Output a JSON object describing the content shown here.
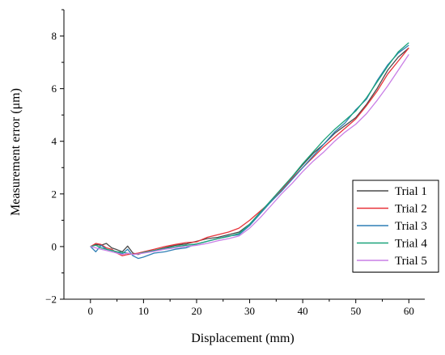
{
  "chart_data": {
    "type": "line",
    "title": "",
    "xlabel": "Displacement (mm)",
    "ylabel": "Measurement error (μm)",
    "xlim": [
      -5,
      63
    ],
    "ylim": [
      -2,
      9
    ],
    "xticks": [
      "0",
      "10",
      "20",
      "30",
      "40",
      "50",
      "60"
    ],
    "yticks": [
      "−2",
      "0",
      "2",
      "4",
      "6",
      "8"
    ],
    "xtick_values": [
      0,
      10,
      20,
      30,
      40,
      50,
      60
    ],
    "ytick_values": [
      -2,
      0,
      2,
      4,
      6,
      8
    ],
    "grid": false,
    "legend_position": "bottom-right",
    "series": [
      {
        "name": "Trial 1",
        "color": "#4a4a4a",
        "x": [
          0,
          1,
          2,
          3,
          4,
          5,
          6,
          7,
          8,
          9,
          10,
          12,
          14,
          16,
          18,
          20,
          22,
          24,
          26,
          28,
          30,
          32,
          34,
          36,
          38,
          40,
          42,
          44,
          46,
          48,
          50,
          52,
          54,
          56,
          58,
          60
        ],
        "y": [
          0.0,
          0.08,
          0.05,
          0.12,
          -0.05,
          -0.12,
          -0.2,
          0.02,
          -0.25,
          -0.3,
          -0.22,
          -0.15,
          -0.05,
          0.05,
          0.1,
          0.2,
          0.3,
          0.35,
          0.45,
          0.55,
          0.85,
          1.3,
          1.75,
          2.2,
          2.65,
          3.1,
          3.55,
          3.9,
          4.3,
          4.6,
          4.9,
          5.4,
          6.0,
          6.7,
          7.2,
          7.55
        ]
      },
      {
        "name": "Trial 2",
        "color": "#e8333a",
        "x": [
          0,
          1,
          2,
          3,
          4,
          5,
          6,
          7,
          8,
          9,
          10,
          12,
          14,
          16,
          18,
          20,
          22,
          24,
          26,
          28,
          30,
          32,
          34,
          36,
          38,
          40,
          42,
          44,
          46,
          48,
          50,
          52,
          54,
          56,
          58,
          60
        ],
        "y": [
          0.0,
          0.12,
          0.08,
          -0.05,
          -0.1,
          -0.25,
          -0.35,
          -0.3,
          -0.28,
          -0.25,
          -0.2,
          -0.1,
          0.0,
          0.08,
          0.15,
          0.18,
          0.35,
          0.45,
          0.55,
          0.7,
          1.0,
          1.35,
          1.7,
          2.15,
          2.6,
          3.0,
          3.4,
          3.8,
          4.15,
          4.5,
          4.85,
          5.35,
          5.9,
          6.55,
          7.05,
          7.55
        ]
      },
      {
        "name": "Trial 3",
        "color": "#2f7fb5",
        "x": [
          0,
          1,
          2,
          3,
          4,
          5,
          6,
          7,
          8,
          9,
          10,
          12,
          14,
          16,
          18,
          20,
          22,
          24,
          26,
          28,
          30,
          32,
          34,
          36,
          38,
          40,
          42,
          44,
          46,
          48,
          50,
          52,
          54,
          56,
          58,
          60
        ],
        "y": [
          0.0,
          -0.2,
          0.05,
          -0.1,
          -0.15,
          -0.2,
          -0.28,
          -0.1,
          -0.35,
          -0.45,
          -0.4,
          -0.25,
          -0.2,
          -0.1,
          -0.05,
          0.1,
          0.2,
          0.3,
          0.4,
          0.45,
          0.8,
          1.25,
          1.7,
          2.1,
          2.55,
          3.0,
          3.45,
          3.9,
          4.35,
          4.7,
          5.2,
          5.6,
          6.3,
          6.9,
          7.35,
          7.65
        ]
      },
      {
        "name": "Trial 4",
        "color": "#1aa37a",
        "x": [
          0,
          1,
          2,
          3,
          4,
          5,
          6,
          7,
          8,
          9,
          10,
          12,
          14,
          16,
          18,
          20,
          22,
          24,
          26,
          28,
          30,
          32,
          34,
          36,
          38,
          40,
          42,
          44,
          46,
          48,
          50,
          52,
          54,
          56,
          58,
          60
        ],
        "y": [
          0.0,
          0.05,
          -0.05,
          -0.1,
          -0.15,
          -0.2,
          -0.22,
          -0.25,
          -0.3,
          -0.28,
          -0.22,
          -0.15,
          -0.08,
          0.0,
          0.05,
          0.1,
          0.2,
          0.3,
          0.38,
          0.5,
          0.85,
          1.3,
          1.75,
          2.2,
          2.65,
          3.15,
          3.6,
          4.05,
          4.45,
          4.8,
          5.15,
          5.65,
          6.25,
          6.85,
          7.4,
          7.75
        ]
      },
      {
        "name": "Trial 5",
        "color": "#c97ee6",
        "x": [
          0,
          1,
          2,
          3,
          4,
          5,
          6,
          7,
          8,
          9,
          10,
          12,
          14,
          16,
          18,
          20,
          22,
          24,
          26,
          28,
          30,
          32,
          34,
          36,
          38,
          40,
          42,
          44,
          46,
          48,
          50,
          52,
          54,
          56,
          58,
          60
        ],
        "y": [
          0.0,
          -0.05,
          -0.1,
          -0.15,
          -0.2,
          -0.25,
          -0.3,
          -0.25,
          -0.3,
          -0.28,
          -0.25,
          -0.18,
          -0.1,
          -0.05,
          0.0,
          0.05,
          0.12,
          0.22,
          0.3,
          0.4,
          0.7,
          1.1,
          1.55,
          2.0,
          2.4,
          2.85,
          3.25,
          3.6,
          4.0,
          4.35,
          4.65,
          5.05,
          5.55,
          6.1,
          6.7,
          7.3
        ]
      }
    ]
  }
}
